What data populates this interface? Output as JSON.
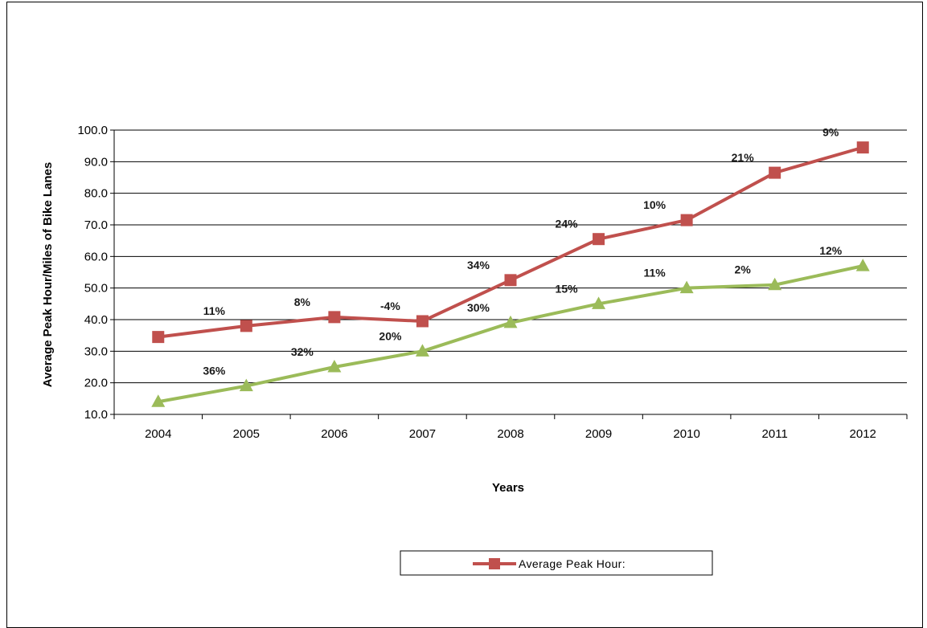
{
  "chart_data": {
    "type": "line",
    "xlabel": "Years",
    "ylabel": "Average Peak Hour/Miles of Bike Lanes",
    "ylim": [
      10,
      100
    ],
    "yticks": [
      "100.0",
      "90.0",
      "80.0",
      "70.0",
      "60.0",
      "50.0",
      "40.0",
      "30.0",
      "20.0",
      "10.0"
    ],
    "ytick_values": [
      100,
      90,
      80,
      70,
      60,
      50,
      40,
      30,
      20,
      10
    ],
    "categories": [
      "2004",
      "2005",
      "2006",
      "2007",
      "2008",
      "2009",
      "2010",
      "2011",
      "2012"
    ],
    "grid": "horizontal",
    "legend": {
      "placement": "bottom-center",
      "entries": [
        "Average Peak Hour:"
      ]
    },
    "series": [
      {
        "name": "Average Peak Hour:",
        "color": "#c0504d",
        "marker": "square",
        "values": [
          34.5,
          38.0,
          40.8,
          39.5,
          52.5,
          65.5,
          71.5,
          86.5,
          94.5
        ],
        "labels": [
          "",
          "11%",
          "8%",
          "-4%",
          "34%",
          "24%",
          "10%",
          "21%",
          "9%"
        ]
      },
      {
        "color": "#9bbb59",
        "marker": "triangle",
        "values": [
          14.0,
          19.0,
          25.0,
          30.0,
          39.0,
          45.0,
          50.0,
          51.0,
          57.0
        ],
        "labels": [
          "",
          "36%",
          "32%",
          "20%",
          "30%",
          "15%",
          "11%",
          "2%",
          "12%"
        ]
      }
    ]
  }
}
